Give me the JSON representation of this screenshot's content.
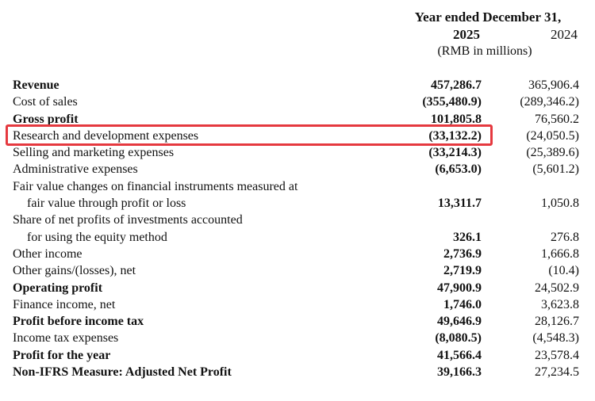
{
  "header": {
    "period": "Year ended December 31,",
    "year_current": "2025",
    "year_prior": "2024",
    "unit": "(RMB in millions)"
  },
  "highlight": {
    "color": "#e5393f",
    "row": "Research and development expenses"
  },
  "rows": [
    {
      "label": "Revenue",
      "v2025": "457,286.7",
      "v2024": "365,906.4"
    },
    {
      "label": "Cost of sales",
      "v2025": "(355,480.9)",
      "v2024": "(289,346.2)"
    },
    {
      "label": "Gross profit",
      "v2025": "101,805.8",
      "v2024": "76,560.2"
    },
    {
      "label": "Research and development expenses",
      "v2025": "(33,132.2)",
      "v2024": "(24,050.5)"
    },
    {
      "label": "Selling and marketing expenses",
      "v2025": "(33,214.3)",
      "v2024": "(25,389.6)"
    },
    {
      "label": "Administrative expenses",
      "v2025": "(6,653.0)",
      "v2024": "(5,601.2)"
    },
    {
      "label": "Fair value changes on financial instruments measured at",
      "v2025": "",
      "v2024": ""
    },
    {
      "label": "fair value through profit or loss",
      "v2025": "13,311.7",
      "v2024": "1,050.8"
    },
    {
      "label": "Share of net profits of investments accounted",
      "v2025": "",
      "v2024": ""
    },
    {
      "label": "for using the equity method",
      "v2025": "326.1",
      "v2024": "276.8"
    },
    {
      "label": "Other income",
      "v2025": "2,736.9",
      "v2024": "1,666.8"
    },
    {
      "label": "Other gains/(losses), net",
      "v2025": "2,719.9",
      "v2024": "(10.4)"
    },
    {
      "label": "Operating profit",
      "v2025": "47,900.9",
      "v2024": "24,502.9"
    },
    {
      "label": "Finance income, net",
      "v2025": "1,746.0",
      "v2024": "3,623.8"
    },
    {
      "label": "Profit before income tax",
      "v2025": "49,646.9",
      "v2024": "28,126.7"
    },
    {
      "label": "Income tax expenses",
      "v2025": "(8,080.5)",
      "v2024": "(4,548.3)"
    },
    {
      "label": "Profit for the year",
      "v2025": "41,566.4",
      "v2024": "23,578.4"
    },
    {
      "label": "Non-IFRS Measure: Adjusted Net Profit",
      "v2025": "39,166.3",
      "v2024": "27,234.5"
    }
  ]
}
